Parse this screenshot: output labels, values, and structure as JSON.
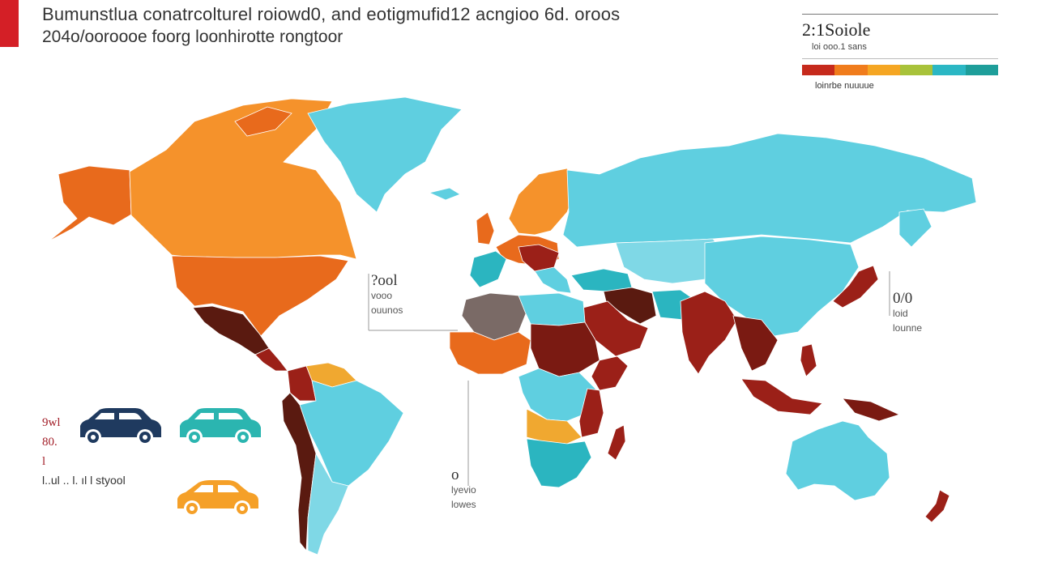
{
  "header": {
    "title": "Bumunstlua conatrcolturel roiowd0,  and eotigmufid12 acngioo 6d. oroos",
    "subtitle": "204o/ooroooe foorg loonhirotte rongtoor",
    "accent_color": "#d41f26"
  },
  "legend": {
    "value": "2:1Soiole",
    "unit": "loi ooo.1 sans",
    "caption": "loinrbe nuuuue",
    "scale_colors": [
      "#c62a1c",
      "#f07c1c",
      "#f5a623",
      "#a8c23a",
      "#2bb7c4",
      "#1e9e9a"
    ]
  },
  "callouts": {
    "left": {
      "value": "?ool",
      "line1": "vooo",
      "line2": "ouunos"
    },
    "right": {
      "value": "0/0",
      "line1": "loid",
      "line2": "lounne"
    },
    "bottom": {
      "value": "o",
      "line1": "lyevio",
      "line2": "lowes"
    }
  },
  "vehicles": {
    "label_lines": [
      "9wl",
      "80.",
      "l"
    ],
    "caption": "l..ul  .. l. ıl l  styool",
    "cars": [
      {
        "icon": "car-sedan-icon",
        "color": "#1f3a5f"
      },
      {
        "icon": "car-hatch-icon",
        "color": "#2bb5b0"
      },
      {
        "icon": "car-compact-icon",
        "color": "#f5a028"
      }
    ]
  },
  "map_colors": {
    "dark_red": "#7a1a12",
    "red": "#9b2018",
    "brown": "#5a1a10",
    "orange": "#e86a1c",
    "light_orange": "#f5922b",
    "amber": "#f0a830",
    "cyan": "#5fcfe0",
    "light_cyan": "#7fd8e6",
    "teal": "#2bb5c0",
    "grey": "#7a6a66"
  }
}
